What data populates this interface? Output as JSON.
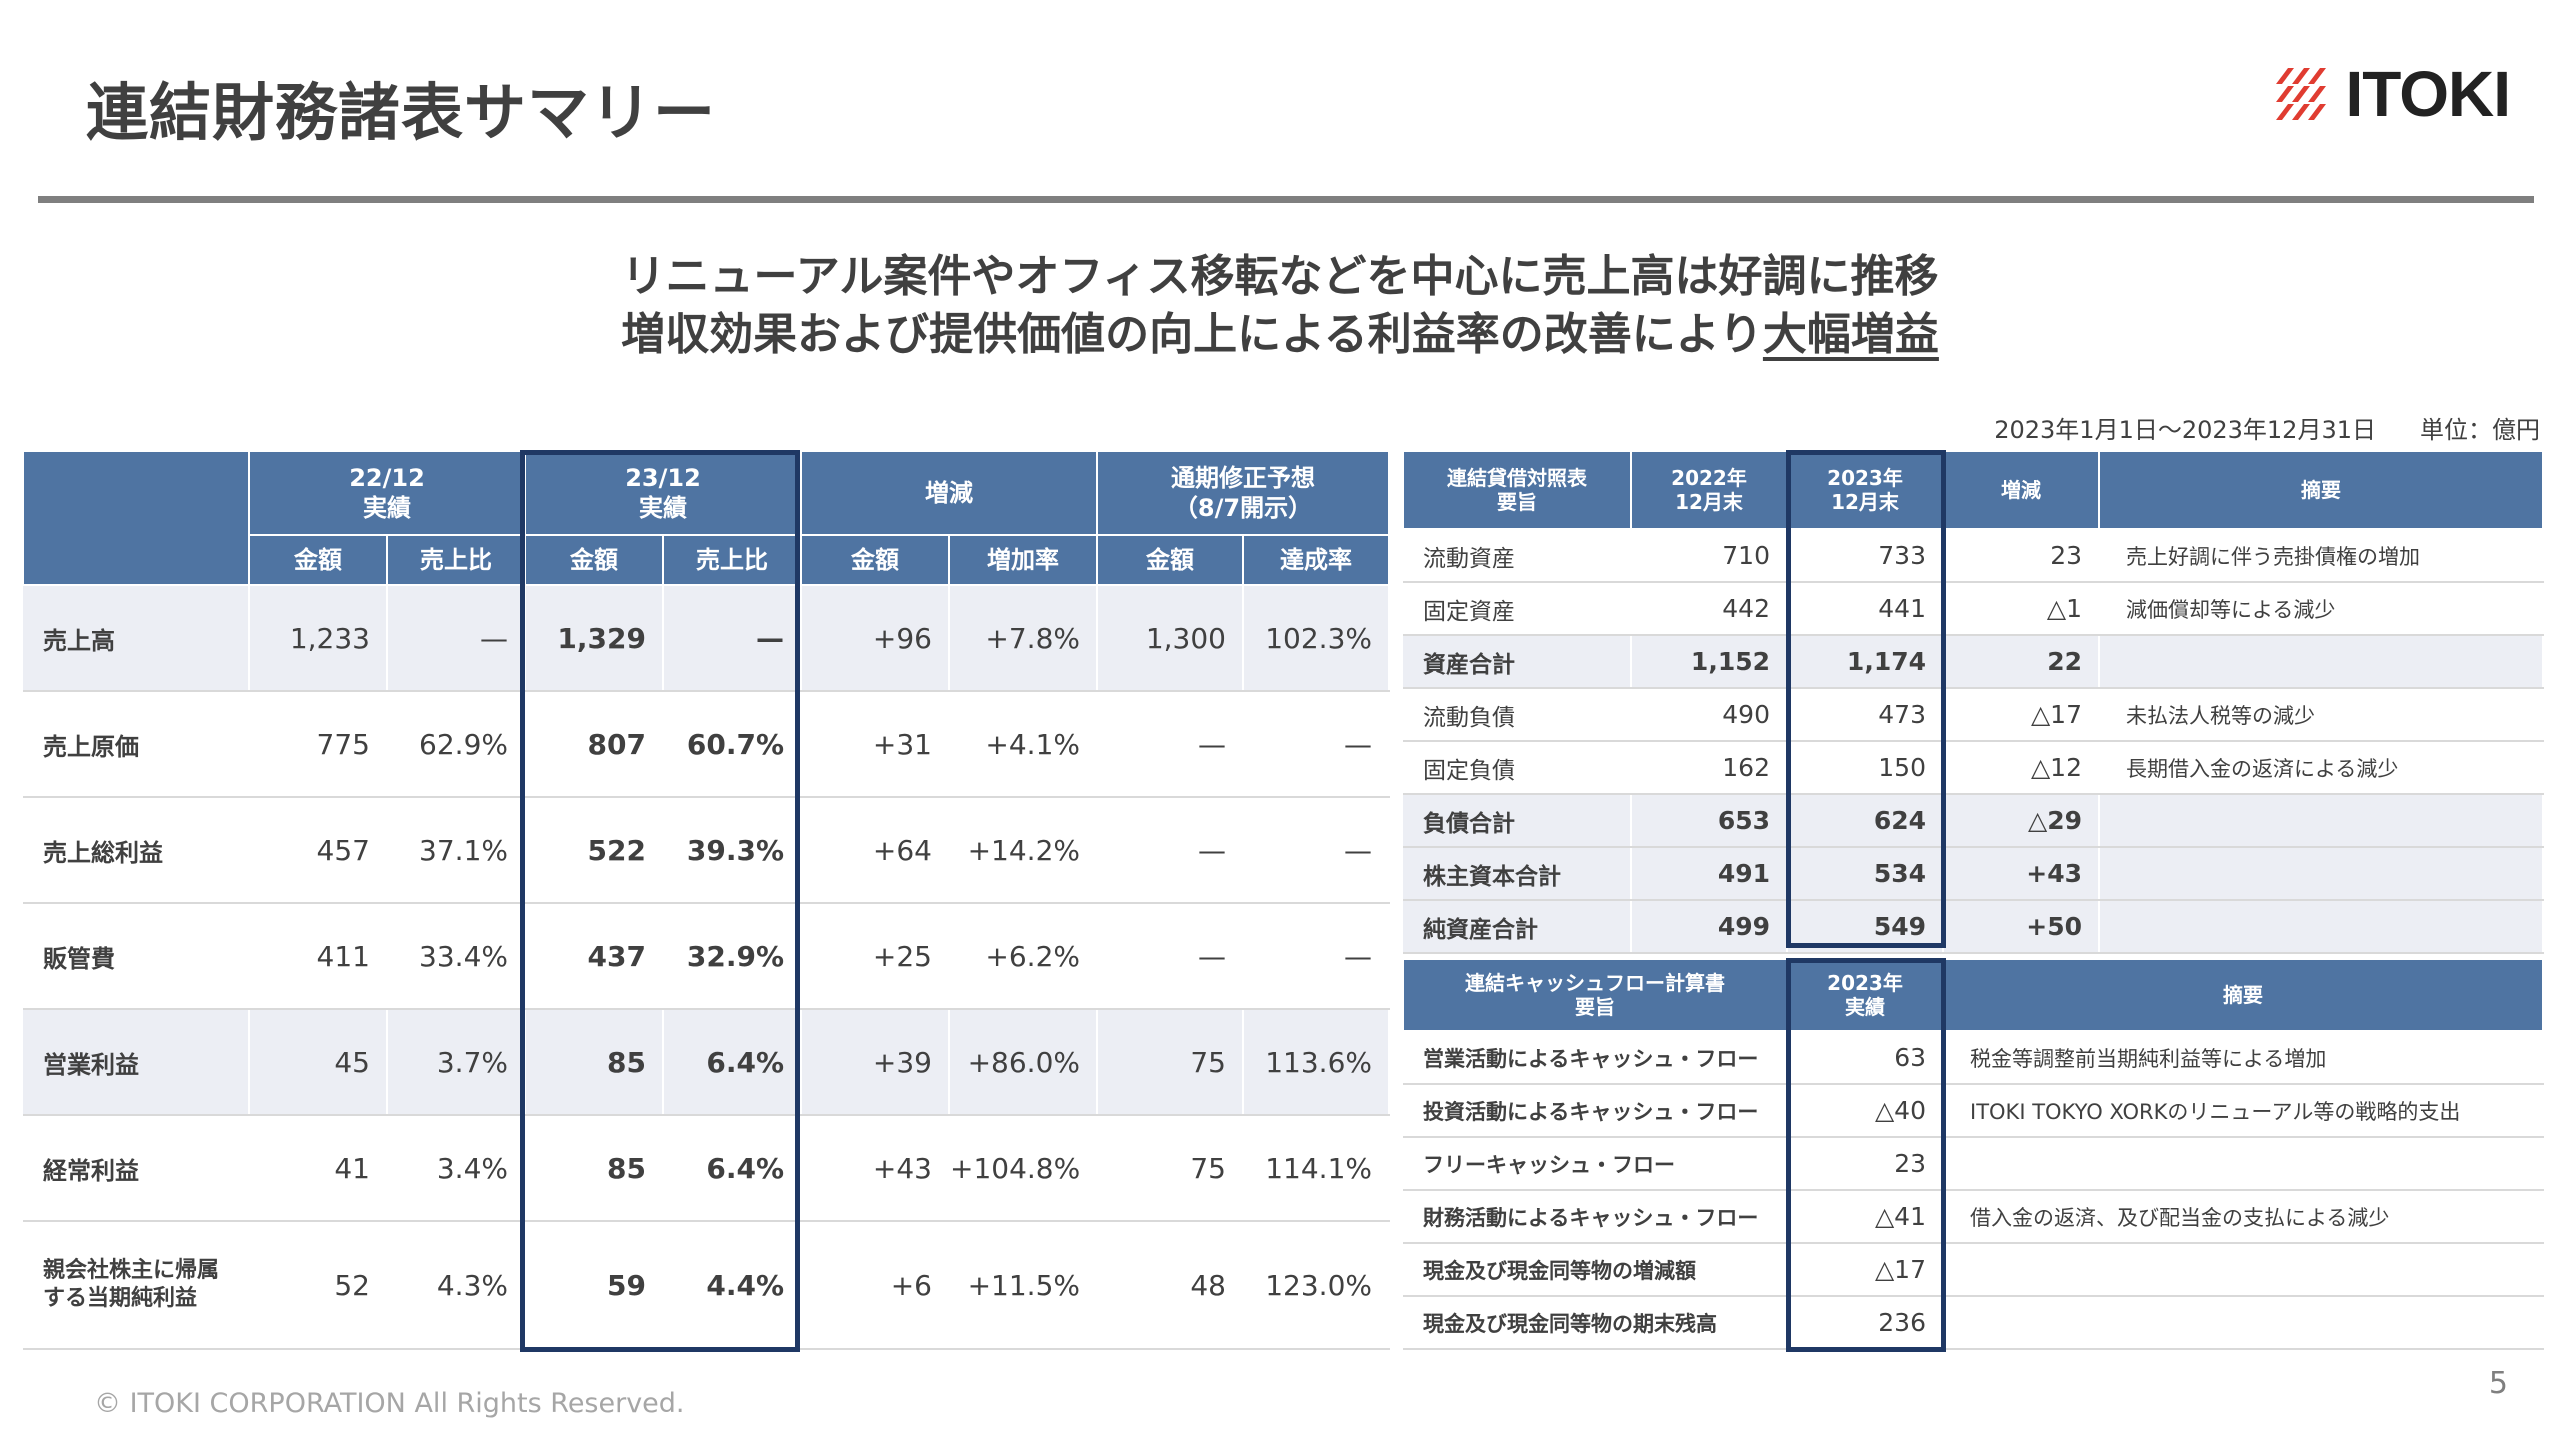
{
  "title": "連結財務諸表サマリー",
  "logo": {
    "text": "ITOKI",
    "accent": "#e03c31"
  },
  "headline": {
    "line1": "リニューアル案件やオフィス移転などを中心に売上高は好調に推移",
    "line2_prefix": "増収効果および提供価値の向上による利益率の改善により",
    "line2_underline": "大幅増益"
  },
  "period": {
    "range": "2023年1月1日～2023年12月31日",
    "unit": "単位：億円"
  },
  "pl": {
    "headers": {
      "h2212": "22/12",
      "h2212_sub": "実績",
      "h2312": "23/12",
      "h2312_sub": "実績",
      "change": "増減",
      "forecast": "通期修正予想",
      "forecast_sub": "（8/7開示）",
      "amount": "金額",
      "ratio": "売上比",
      "rate": "増加率",
      "achieve": "達成率"
    },
    "rows": [
      {
        "label": "売上高",
        "a22": "1,233",
        "r22": "—",
        "a23": "1,329",
        "r23": "—",
        "chg": "+96",
        "rate": "+7.8%",
        "fc": "1,300",
        "ach": "102.3%"
      },
      {
        "label": "売上原価",
        "a22": "775",
        "r22": "62.9%",
        "a23": "807",
        "r23": "60.7%",
        "chg": "+31",
        "rate": "+4.1%",
        "fc": "—",
        "ach": "—"
      },
      {
        "label": "売上総利益",
        "a22": "457",
        "r22": "37.1%",
        "a23": "522",
        "r23": "39.3%",
        "chg": "+64",
        "rate": "+14.2%",
        "fc": "—",
        "ach": "—"
      },
      {
        "label": "販管費",
        "a22": "411",
        "r22": "33.4%",
        "a23": "437",
        "r23": "32.9%",
        "chg": "+25",
        "rate": "+6.2%",
        "fc": "—",
        "ach": "—"
      },
      {
        "label": "営業利益",
        "a22": "45",
        "r22": "3.7%",
        "a23": "85",
        "r23": "6.4%",
        "chg": "+39",
        "rate": "+86.0%",
        "fc": "75",
        "ach": "113.6%"
      },
      {
        "label": "経常利益",
        "a22": "41",
        "r22": "3.4%",
        "a23": "85",
        "r23": "6.4%",
        "chg": "+43",
        "rate": "+104.8%",
        "fc": "75",
        "ach": "114.1%"
      },
      {
        "label1": "親会社株主に帰属",
        "label2": "する当期純利益",
        "a22": "52",
        "r22": "4.3%",
        "a23": "59",
        "r23": "4.4%",
        "chg": "+6",
        "rate": "+11.5%",
        "fc": "48",
        "ach": "123.0%"
      }
    ]
  },
  "bs": {
    "headers": {
      "title": "連結貸借対照表",
      "title_sub": "要旨",
      "y22": "2022年",
      "y22_sub": "12月末",
      "y23": "2023年",
      "y23_sub": "12月末",
      "change": "増減",
      "note": "摘要"
    },
    "rows": [
      {
        "label": "流動資産",
        "v22": "710",
        "v23": "733",
        "chg": "23",
        "note": "売上好調に伴う売掛債権の増加"
      },
      {
        "label": "固定資産",
        "v22": "442",
        "v23": "441",
        "chg": "△1",
        "note": "減価償却等による減少"
      },
      {
        "label": "資産合計",
        "v22": "1,152",
        "v23": "1,174",
        "chg": "22",
        "note": ""
      },
      {
        "label": "流動負債",
        "v22": "490",
        "v23": "473",
        "chg": "△17",
        "note": "未払法人税等の減少"
      },
      {
        "label": "固定負債",
        "v22": "162",
        "v23": "150",
        "chg": "△12",
        "note": "長期借入金の返済による減少"
      },
      {
        "label": "負債合計",
        "v22": "653",
        "v23": "624",
        "chg": "△29",
        "note": ""
      },
      {
        "label": "株主資本合計",
        "v22": "491",
        "v23": "534",
        "chg": "+43",
        "note": ""
      },
      {
        "label": "純資産合計",
        "v22": "499",
        "v23": "549",
        "chg": "+50",
        "note": ""
      }
    ]
  },
  "cf": {
    "headers": {
      "title": "連結キャッシュフロー計算書",
      "title_sub": "要旨",
      "y23": "2023年",
      "y23_sub": "実績",
      "note": "摘要"
    },
    "rows": [
      {
        "label": "営業活動によるキャッシュ・フロー",
        "v23": "63",
        "note": "税金等調整前当期純利益等による増加"
      },
      {
        "label": "投資活動によるキャッシュ・フロー",
        "v23": "△40",
        "note": "ITOKI TOKYO XORKのリニューアル等の戦略的支出"
      },
      {
        "label": "フリーキャッシュ・フロー",
        "v23": "23",
        "note": ""
      },
      {
        "label": "財務活動によるキャッシュ・フロー",
        "v23": "△41",
        "note": "借入金の返済、及び配当金の支払による減少"
      },
      {
        "label": "現金及び現金同等物の増減額",
        "v23": "△17",
        "note": ""
      },
      {
        "label": "現金及び現金同等物の期末残高",
        "v23": "236",
        "note": ""
      }
    ]
  },
  "footer": "© ITOKI CORPORATION All Rights Reserved.",
  "page_number": "5"
}
